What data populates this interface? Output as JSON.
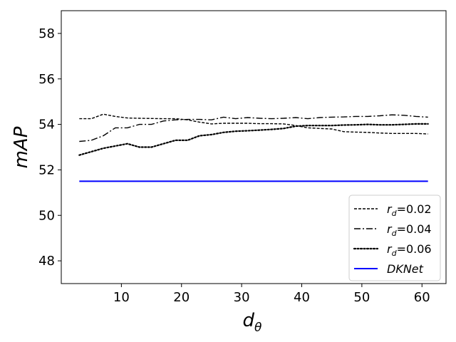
{
  "chart_data": {
    "type": "line",
    "xlabel": "d",
    "xlabel_sub": "θ",
    "ylabel": "mAP",
    "xlim": [
      0,
      64
    ],
    "ylim": [
      47,
      59
    ],
    "xticks": [
      10,
      20,
      30,
      40,
      50,
      60
    ],
    "yticks": [
      48,
      50,
      52,
      54,
      56,
      58
    ],
    "grid": false,
    "legend_position": "lower-right",
    "series": [
      {
        "name": "r",
        "name_sub": "d",
        "name_suffix": "=0.02",
        "style": "dashed",
        "color": "#000000",
        "x": [
          3,
          5,
          7,
          9,
          11,
          13,
          15,
          17,
          19,
          21,
          23,
          25,
          27,
          29,
          31,
          33,
          35,
          37,
          39,
          41,
          43,
          45,
          47,
          49,
          51,
          53,
          55,
          57,
          59,
          61
        ],
        "y": [
          54.25,
          54.25,
          54.45,
          54.35,
          54.28,
          54.27,
          54.26,
          54.25,
          54.25,
          54.2,
          54.1,
          54.02,
          54.05,
          54.05,
          54.05,
          54.03,
          54.03,
          54.02,
          53.95,
          53.85,
          53.82,
          53.8,
          53.68,
          53.66,
          53.65,
          53.62,
          53.6,
          53.6,
          53.6,
          53.58
        ]
      },
      {
        "name": "r",
        "name_sub": "d",
        "name_suffix": "=0.04",
        "style": "dashdot",
        "color": "#000000",
        "x": [
          3,
          5,
          7,
          9,
          11,
          13,
          15,
          17,
          19,
          21,
          23,
          25,
          27,
          29,
          31,
          33,
          35,
          37,
          39,
          41,
          43,
          45,
          47,
          49,
          51,
          53,
          55,
          57,
          59,
          61
        ],
        "y": [
          53.25,
          53.3,
          53.5,
          53.85,
          53.85,
          54.0,
          54.0,
          54.15,
          54.2,
          54.22,
          54.22,
          54.2,
          54.32,
          54.25,
          54.3,
          54.27,
          54.25,
          54.27,
          54.3,
          54.25,
          54.3,
          54.32,
          54.33,
          54.35,
          54.35,
          54.38,
          54.42,
          54.4,
          54.35,
          54.32
        ]
      },
      {
        "name": "r",
        "name_sub": "d",
        "name_suffix": "=0.06",
        "style": "dotted",
        "color": "#000000",
        "x": [
          3,
          5,
          7,
          9,
          11,
          13,
          15,
          17,
          19,
          21,
          23,
          25,
          27,
          29,
          31,
          33,
          35,
          37,
          39,
          41,
          43,
          45,
          47,
          49,
          51,
          53,
          55,
          57,
          59,
          61
        ],
        "y": [
          52.65,
          52.8,
          52.95,
          53.05,
          53.15,
          53.0,
          53.0,
          53.15,
          53.3,
          53.3,
          53.5,
          53.55,
          53.65,
          53.7,
          53.72,
          53.75,
          53.78,
          53.82,
          53.92,
          53.95,
          53.95,
          53.95,
          53.97,
          53.98,
          54.0,
          53.98,
          53.98,
          54.0,
          54.02,
          54.02
        ]
      },
      {
        "name": "DKNet",
        "name_sub": "",
        "name_suffix": "",
        "style": "solid",
        "color": "#0000ff",
        "x": [
          3,
          61
        ],
        "y": [
          51.5,
          51.5
        ]
      }
    ]
  }
}
